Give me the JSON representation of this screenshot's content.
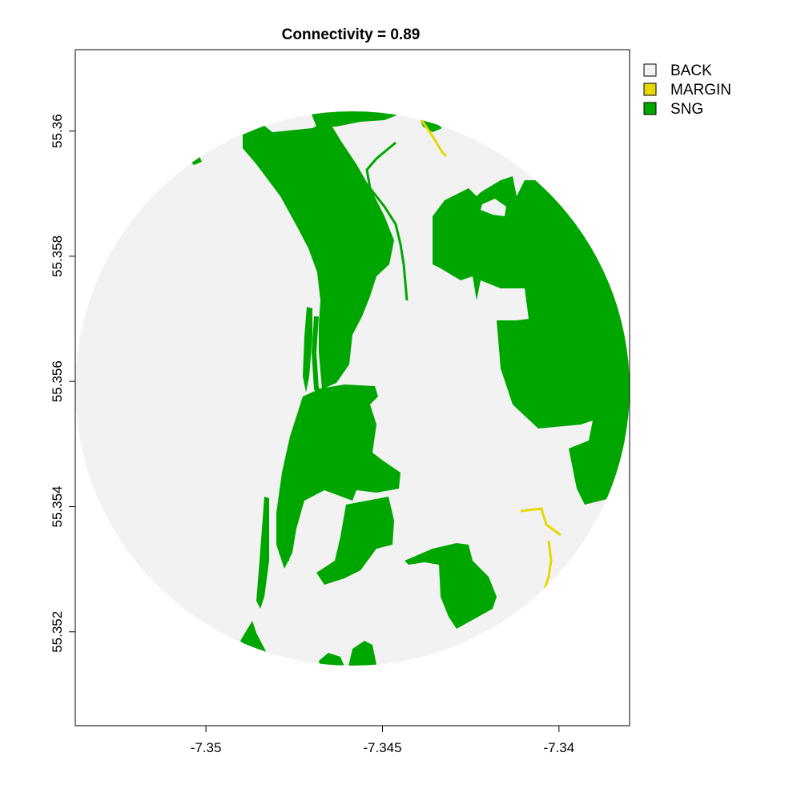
{
  "map": {
    "title": "Connectivity = 0.89",
    "x_ticks": [
      {
        "value": -7.35,
        "label": "-7.35"
      },
      {
        "value": -7.345,
        "label": "-7.345"
      },
      {
        "value": -7.34,
        "label": "-7.34"
      }
    ],
    "y_ticks": [
      {
        "value": 55.36,
        "label": "55.36"
      },
      {
        "value": 55.358,
        "label": "55.358"
      },
      {
        "value": 55.356,
        "label": "55.356"
      },
      {
        "value": 55.354,
        "label": "55.354"
      },
      {
        "value": 55.352,
        "label": "55.352"
      }
    ],
    "x_range": [
      -7.3537,
      -7.338
    ],
    "y_range": [
      55.3505,
      55.3613
    ],
    "legend": [
      {
        "label": "BACK",
        "color": "#f2f2f2"
      },
      {
        "label": "MARGIN",
        "color": "#e6d800"
      },
      {
        "label": "SNG",
        "color": "#00a600"
      }
    ],
    "colors": {
      "background_class": "#f2f2f2",
      "margin_class": "#e6d800",
      "sng_class": "#00a600",
      "frame": "#000000"
    }
  }
}
